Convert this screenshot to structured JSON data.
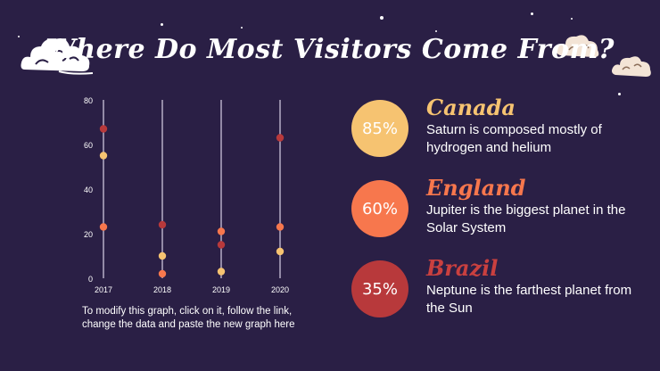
{
  "slide": {
    "title": "Where Do Most Visitors Come From?"
  },
  "chart_data": {
    "type": "scatter",
    "categories": [
      "2017",
      "2018",
      "2019",
      "2020"
    ],
    "y_ticks": [
      "0",
      "20",
      "40",
      "60",
      "80"
    ],
    "ylim": [
      0,
      80
    ],
    "grid": false,
    "series": [
      {
        "color": "#b8393b",
        "values": [
          67,
          24,
          15,
          63
        ]
      },
      {
        "color": "#f6c371",
        "values": [
          55,
          10,
          3,
          12
        ]
      },
      {
        "color": "#f7774d",
        "values": [
          23,
          2,
          21,
          23
        ]
      }
    ]
  },
  "caption": "To modify this graph, click on it, follow the link, change the data and paste the new graph here",
  "stats": [
    {
      "percent": "85%",
      "country": "Canada",
      "description": "Saturn is composed mostly of hydrogen and helium",
      "color": "#f6c371"
    },
    {
      "percent": "60%",
      "country": "England",
      "description": "Jupiter is the biggest planet in the Solar System",
      "color": "#f7774d"
    },
    {
      "percent": "35%",
      "country": "Brazil",
      "description": "Neptune is the farthest planet from the Sun",
      "color": "#b8393b"
    }
  ],
  "decor": {
    "cloud_icon": "cloud-icon",
    "star_icon": "star-icon"
  }
}
